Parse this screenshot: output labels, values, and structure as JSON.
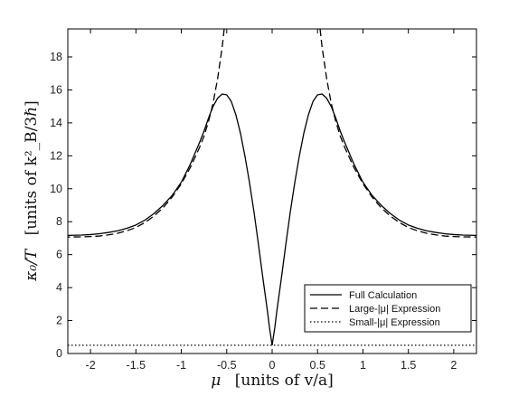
{
  "chart_data": {
    "type": "line",
    "xlabel": {
      "symbol": "μ",
      "units": "[units of v/a]"
    },
    "ylabel": {
      "symbol": "κ₀/T",
      "units": "[units of k²_B/3ℏ]"
    },
    "xlim": [
      -2.25,
      2.25
    ],
    "ylim": [
      0,
      19.7
    ],
    "xticks": [
      -2,
      -1.5,
      -1,
      -0.5,
      0,
      0.5,
      1,
      1.5,
      2
    ],
    "xtick_labels": [
      "-2",
      "-1.5",
      "-1",
      "-0.5",
      "0",
      "0.5",
      "1",
      "1.5",
      "2"
    ],
    "yticks": [
      0,
      2,
      4,
      6,
      8,
      10,
      12,
      14,
      16,
      18
    ],
    "ytick_labels": [
      "0",
      "2",
      "4",
      "6",
      "8",
      "10",
      "12",
      "14",
      "16",
      "18"
    ],
    "grid": false,
    "legend_position": "bottom-right",
    "series": [
      {
        "name": "Full Calculation",
        "style": "solid",
        "color": "#000000",
        "x": [
          0,
          0.03,
          0.05,
          0.1,
          0.15,
          0.2,
          0.25,
          0.3,
          0.35,
          0.4,
          0.45,
          0.5,
          0.55,
          0.6,
          0.65,
          0.7,
          0.75,
          0.8,
          0.9,
          1.0,
          1.1,
          1.2,
          1.3,
          1.4,
          1.5,
          1.6,
          1.7,
          1.8,
          1.9,
          2.0,
          2.1,
          2.25
        ],
        "y": [
          0.5,
          1.6,
          2.5,
          4.5,
          6.6,
          8.6,
          10.4,
          12.0,
          13.4,
          14.5,
          15.3,
          15.7,
          15.75,
          15.5,
          15.0,
          14.3,
          13.5,
          12.8,
          11.5,
          10.4,
          9.6,
          9.0,
          8.5,
          8.1,
          7.8,
          7.6,
          7.45,
          7.35,
          7.27,
          7.22,
          7.19,
          7.17
        ]
      },
      {
        "name": "Large-|μ| Expression",
        "style": "dashed",
        "color": "#000000",
        "x": [
          0.5,
          0.52,
          0.55,
          0.6,
          0.65,
          0.7,
          0.75,
          0.8,
          0.9,
          1.0,
          1.1,
          1.2,
          1.3,
          1.4,
          1.5,
          1.6,
          1.7,
          1.8,
          1.9,
          2.0,
          2.1,
          2.25
        ],
        "y": [
          21.0,
          20.1,
          18.6,
          16.7,
          15.2,
          14.1,
          13.2,
          12.5,
          11.3,
          10.3,
          9.5,
          8.85,
          8.35,
          7.95,
          7.65,
          7.45,
          7.3,
          7.2,
          7.13,
          7.1,
          7.08,
          7.07
        ]
      },
      {
        "name": "Small-|μ| Expression",
        "style": "dotted",
        "color": "#000000",
        "x": [
          -2.25,
          2.25
        ],
        "y": [
          0.5,
          0.5
        ]
      }
    ]
  },
  "page": {
    "legend": {
      "full": "Full Calculation",
      "large": "Large-|μ| Expression",
      "small": "Small-|μ| Expression"
    }
  }
}
